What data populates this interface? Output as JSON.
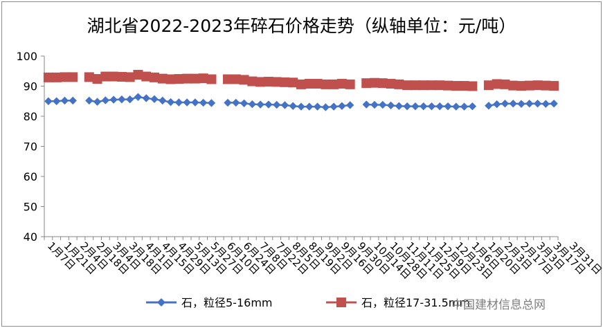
{
  "title": "湖北省2022-2023年碎石价格走势（纵轴单位：元/吨）",
  "watermark": "中国建材信息总网",
  "chart_data": {
    "type": "line",
    "title": "湖北省2022-2023年碎石价格走势（纵轴单位：元/吨）",
    "xlabel": "",
    "ylabel": "",
    "ylim": [
      40,
      100
    ],
    "yticks": [
      40,
      50,
      60,
      70,
      80,
      90,
      100
    ],
    "grid": false,
    "legend": "bottom",
    "x_tick_labels": [
      "1月7日",
      "1月21日",
      "2月4日",
      "2月18日",
      "3月4日",
      "3月18日",
      "4月1日",
      "4月15日",
      "4月29日",
      "5月13日",
      "5月27日",
      "6月10日",
      "6月24日",
      "7月8日",
      "7月22日",
      "8月5日",
      "8月19日",
      "9月2日",
      "9月16日",
      "9月30日",
      "10月14日",
      "10月28日",
      "11月11日",
      "11月25日",
      "12月9日",
      "12月23日",
      "1月6日",
      "1月20日",
      "2月3日",
      "2月17日",
      "3月3日",
      "3月17日",
      "3月31日"
    ],
    "series": [
      {
        "name": "石，粒径5-16mm",
        "color": "#4472C4",
        "marker": "diamond",
        "values": [
          85,
          85,
          85.2,
          85.2,
          null,
          85.2,
          84.8,
          85.3,
          85.5,
          85.6,
          85.6,
          86.4,
          86,
          85.7,
          85.2,
          84.7,
          84.6,
          84.6,
          84.6,
          84.5,
          84.4,
          null,
          84.5,
          84.5,
          84.3,
          84,
          83.9,
          83.9,
          83.8,
          83.7,
          83.4,
          83.2,
          83.2,
          83.2,
          83,
          83.2,
          83.4,
          83.7,
          null,
          83.9,
          83.8,
          83.8,
          83.6,
          83.4,
          83.3,
          83.3,
          83.3,
          83.3,
          83.3,
          83.3,
          83.2,
          83.2,
          83.3,
          null,
          83.5,
          84,
          84.2,
          84.2,
          84.1,
          84.2,
          84.2,
          84.1,
          84.2
        ]
      },
      {
        "name": "石，粒径17-31.5mm",
        "color": "#C0504D",
        "marker": "square",
        "values": [
          92.9,
          92.9,
          93,
          93,
          null,
          93,
          92.4,
          93.2,
          93.2,
          93.1,
          93,
          93.8,
          93.2,
          92.9,
          92.5,
          92.3,
          92.4,
          92.5,
          92.5,
          92.6,
          92.3,
          null,
          92.3,
          92.3,
          92.1,
          91.6,
          91.4,
          91.5,
          91.4,
          91.3,
          91.2,
          90.6,
          90.8,
          90.8,
          90.6,
          90.6,
          90.8,
          90.6,
          null,
          91,
          91.1,
          91,
          90.8,
          90.6,
          90.3,
          90.3,
          90.3,
          90.3,
          90.3,
          90.2,
          90.1,
          90.1,
          90,
          null,
          90.3,
          90.7,
          90.6,
          90.2,
          90.1,
          90.2,
          90.3,
          90.2,
          90.1
        ]
      }
    ]
  }
}
